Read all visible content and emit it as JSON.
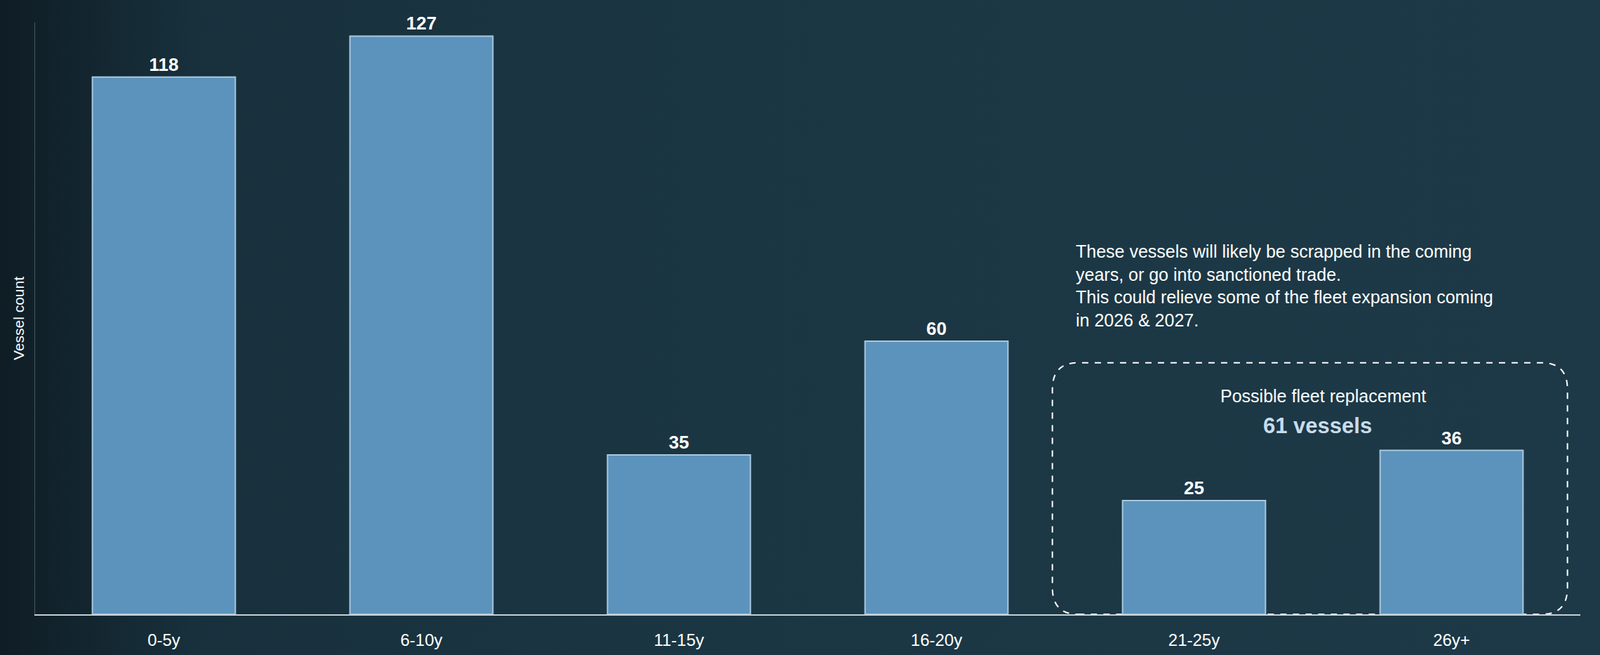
{
  "chart_data": {
    "type": "bar",
    "y_label": "Vessel count",
    "categories": [
      "0-5y",
      "6-10y",
      "11-15y",
      "16-20y",
      "21-25y",
      "26y+"
    ],
    "values": [
      118,
      127,
      35,
      60,
      25,
      36
    ],
    "color": "#5b93bd",
    "ylim": [
      0,
      130
    ],
    "yticks": [],
    "grid": false,
    "data_labels": true,
    "tick_labels": "x",
    "callout": {
      "note": [
        "These vessels will likely be scrapped in the coming",
        "years, or go into sanctioned trade.",
        "This could relieve some of the fleet expansion coming",
        "in 2026 & 2027."
      ],
      "label": "Possible fleet replacement",
      "total": "61 vessels",
      "categories": [
        "21-25y",
        "26y+"
      ]
    }
  }
}
